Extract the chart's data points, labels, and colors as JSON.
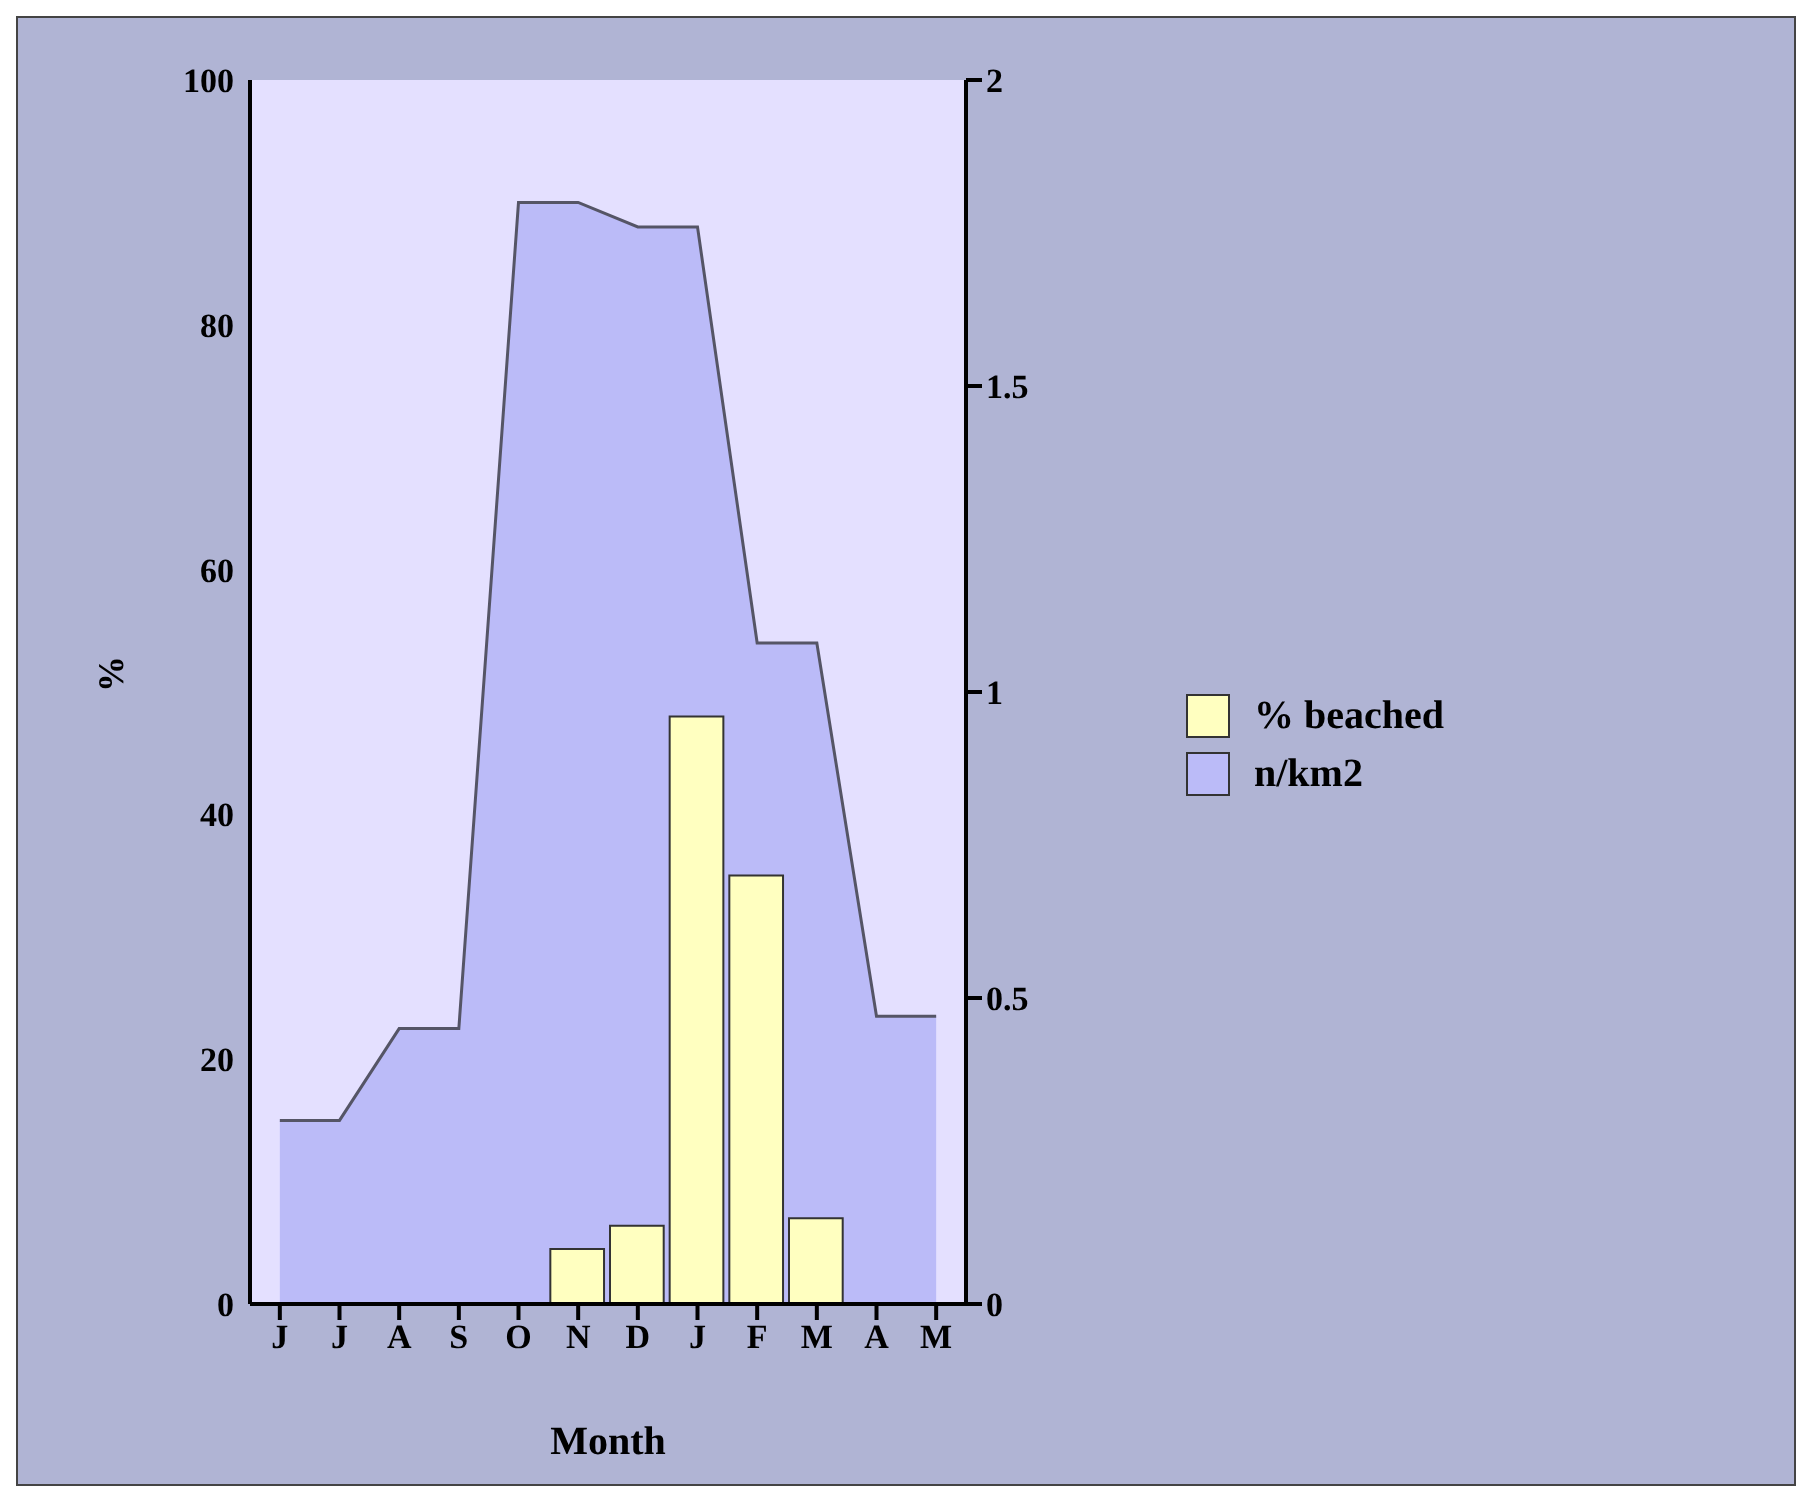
{
  "chart_data": {
    "type": "bar",
    "xlabel": "Month",
    "ylabel": "%",
    "categories": [
      "J",
      "J",
      "A",
      "S",
      "O",
      "N",
      "D",
      "J",
      "F",
      "M",
      "A",
      "M"
    ],
    "series": [
      {
        "name": "n/km2",
        "type": "area",
        "axis": "y2",
        "color": "#bbbbf8",
        "values": [
          0.3,
          0.3,
          0.45,
          0.45,
          1.8,
          1.8,
          1.76,
          1.76,
          1.08,
          1.08,
          0.47,
          0.47
        ]
      },
      {
        "name": "% beached",
        "color": "#ffffc0",
        "values": [
          0,
          0,
          0,
          0,
          0,
          4.5,
          6.4,
          48,
          35,
          7,
          0,
          0
        ]
      }
    ],
    "ylim": [
      0,
      100
    ],
    "yticks": [
      0,
      20,
      40,
      60,
      80,
      100
    ],
    "y2lim": [
      0,
      2
    ],
    "y2ticks": [
      0,
      0.5,
      1,
      1.5,
      2
    ],
    "legend": "right"
  }
}
